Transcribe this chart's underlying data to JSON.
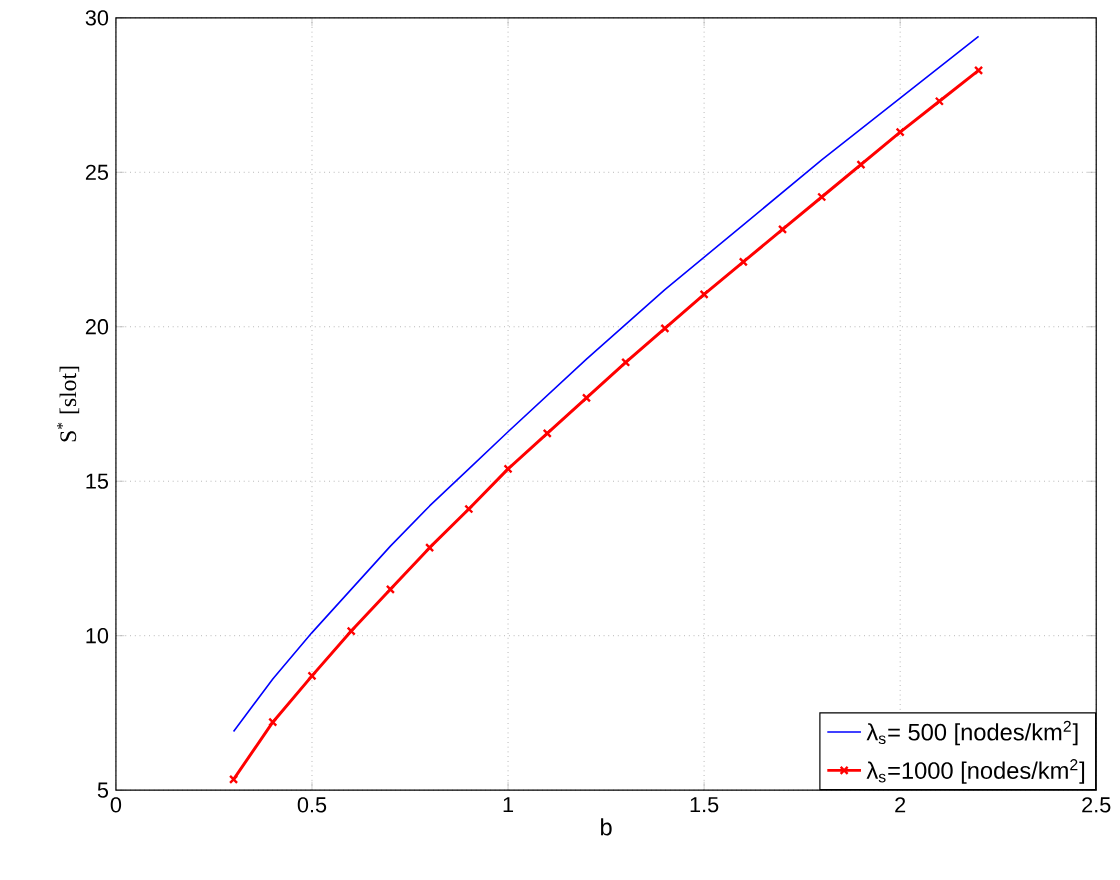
{
  "chart_data": {
    "type": "line",
    "xlabel": "b",
    "ylabel": "S$^{*}$ [slot]",
    "xlim": [
      0,
      2.5
    ],
    "ylim": [
      5,
      30
    ],
    "xticks": [
      0,
      0.5,
      1,
      1.5,
      2,
      2.5
    ],
    "yticks": [
      5,
      10,
      15,
      20,
      25,
      30
    ],
    "grid": true,
    "legend": "bottom right",
    "series": [
      {
        "name": "λ$_{s}$= 500 [nodes/km$^{2}$]",
        "color": "#0000ff",
        "marker": "none",
        "x": [
          0.3,
          0.4,
          0.5,
          0.6,
          0.7,
          0.8,
          0.9,
          1.0,
          1.2,
          1.4,
          1.6,
          1.8,
          2.0,
          2.2
        ],
        "values": [
          6.9,
          8.6,
          10.1,
          11.5,
          12.9,
          14.2,
          15.4,
          16.6,
          18.95,
          21.2,
          23.3,
          25.4,
          27.4,
          29.4
        ]
      },
      {
        "name": "λ$_{s}$=1000 [nodes/km$^{2}$]",
        "color": "#ff0000",
        "marker": "cross",
        "x": [
          0.3,
          0.4,
          0.5,
          0.6,
          0.7,
          0.8,
          0.9,
          1.0,
          1.1,
          1.2,
          1.3,
          1.4,
          1.5,
          1.6,
          1.7,
          1.8,
          1.9,
          2.0,
          2.1,
          2.2
        ],
        "values": [
          5.35,
          7.2,
          8.7,
          10.15,
          11.5,
          12.85,
          14.1,
          15.4,
          16.55,
          17.7,
          18.85,
          19.95,
          21.05,
          22.1,
          23.15,
          24.2,
          25.25,
          26.3,
          27.3,
          28.3
        ]
      }
    ]
  }
}
